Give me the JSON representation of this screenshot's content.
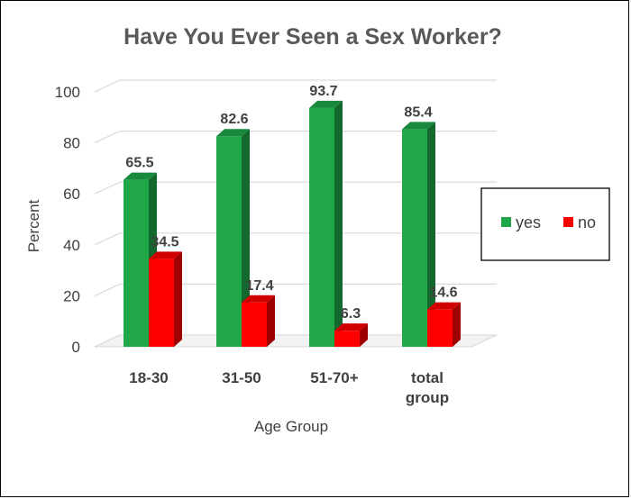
{
  "chart_data": {
    "type": "bar",
    "title": "Have You Ever Seen a Sex Worker?",
    "xlabel": "Age Group",
    "ylabel": "Percent",
    "ylim": [
      0,
      100
    ],
    "yticks": [
      "0",
      "20",
      "40",
      "60",
      "80",
      "100"
    ],
    "categories": [
      [
        "18-30"
      ],
      [
        "31-50"
      ],
      [
        "51-70+"
      ],
      [
        "total",
        "group"
      ]
    ],
    "series": [
      {
        "name": "yes",
        "color": "#1FA74A",
        "values": [
          65.5,
          82.6,
          93.7,
          85.4
        ]
      },
      {
        "name": "no",
        "color": "#FF0000",
        "values": [
          34.5,
          17.4,
          6.3,
          14.6
        ]
      }
    ],
    "data_labels": [
      [
        "65.5",
        "82.6",
        "93.7",
        "85.4"
      ],
      [
        "34.5",
        "17.4",
        "6.3",
        "14.6"
      ]
    ],
    "grid": true,
    "legend_position": "right",
    "style": "3d-clustered-column"
  }
}
